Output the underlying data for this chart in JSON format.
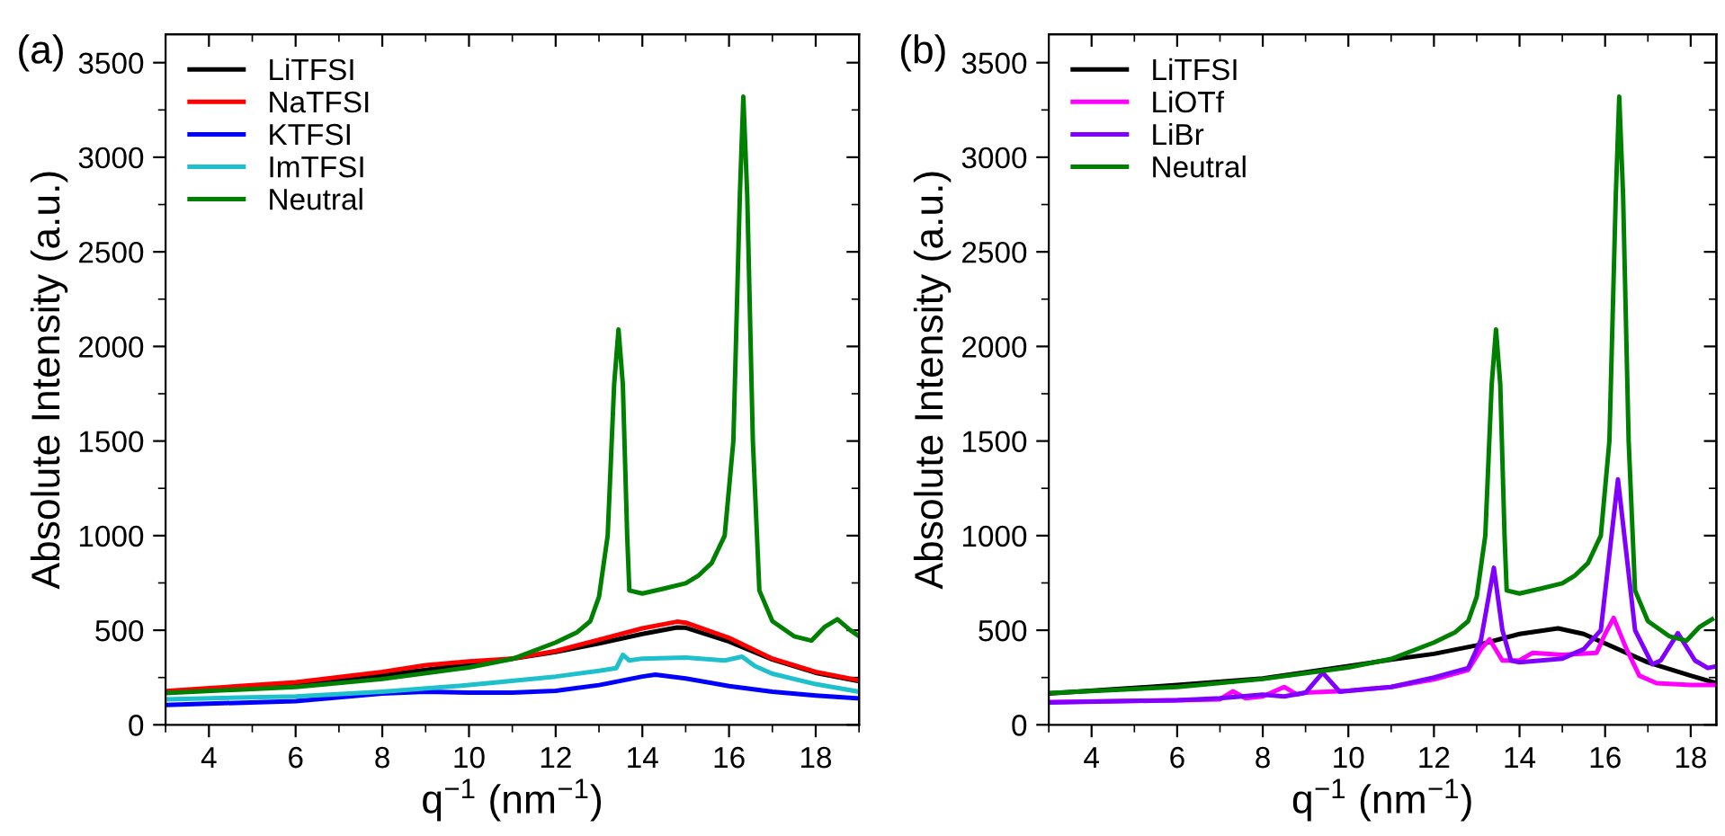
{
  "chart_data": [
    {
      "type": "line",
      "annotations": [
        "(a)"
      ],
      "xlabel": "q$^{−1}$ (nm$^{−1}$)",
      "ylabel": "Absolute Intensity (a.u.)",
      "xlim": [
        3,
        19
      ],
      "xticks": [
        4,
        6,
        8,
        10,
        12,
        14,
        16,
        18
      ],
      "ylim": [
        0,
        3650
      ],
      "yticks": [
        0,
        500,
        1000,
        1500,
        2000,
        2500,
        3000,
        3500
      ],
      "legend": "top left",
      "grid": false,
      "series": [
        {
          "name": "LiTFSI",
          "color": "#000000",
          "x": [
            3,
            6,
            8,
            9,
            10,
            11,
            12,
            13,
            14,
            14.8,
            15,
            16,
            17,
            18,
            19
          ],
          "values": [
            170,
            215,
            262,
            290,
            320,
            350,
            385,
            430,
            480,
            515,
            513,
            440,
            345,
            275,
            230
          ]
        },
        {
          "name": "NaTFSI",
          "color": "#ff0000",
          "x": [
            3,
            6,
            8,
            9,
            10,
            11,
            12,
            13,
            14,
            14.8,
            15,
            16,
            17,
            18,
            19
          ],
          "values": [
            178,
            225,
            280,
            315,
            335,
            350,
            390,
            450,
            510,
            545,
            540,
            460,
            350,
            280,
            235
          ]
        },
        {
          "name": "KTFSI",
          "color": "#0000ff",
          "x": [
            3,
            6,
            8,
            9,
            10,
            11,
            12,
            13,
            14,
            14.3,
            15,
            16,
            17,
            18,
            19
          ],
          "values": [
            105,
            125,
            165,
            175,
            170,
            170,
            180,
            210,
            255,
            265,
            245,
            205,
            175,
            155,
            140
          ]
        },
        {
          "name": "ImTFSI",
          "color": "#1ec0cc",
          "x": [
            3,
            6,
            8,
            10,
            12,
            13,
            13.4,
            13.55,
            13.7,
            14,
            15,
            15.9,
            16.3,
            16.6,
            17,
            18,
            19
          ],
          "values": [
            135,
            150,
            175,
            210,
            255,
            285,
            300,
            370,
            340,
            350,
            355,
            340,
            360,
            310,
            270,
            215,
            175
          ]
        },
        {
          "name": "Neutral",
          "color": "#008000",
          "x": [
            3,
            6,
            8,
            10,
            11,
            12,
            12.5,
            12.8,
            13,
            13.2,
            13.35,
            13.45,
            13.55,
            13.65,
            13.7,
            14,
            14.5,
            15,
            15.3,
            15.6,
            15.9,
            16.1,
            16.25,
            16.33,
            16.42,
            16.55,
            16.7,
            17,
            17.5,
            17.9,
            18.2,
            18.5,
            18.8,
            19
          ],
          "values": [
            168,
            200,
            242,
            303,
            348,
            435,
            490,
            548,
            677,
            1000,
            1800,
            2090,
            1800,
            1000,
            710,
            694,
            720,
            748,
            790,
            855,
            1000,
            1500,
            2800,
            3320,
            2800,
            1500,
            710,
            548,
            468,
            445,
            516,
            558,
            500,
            468
          ]
        }
      ]
    },
    {
      "type": "line",
      "annotations": [
        "(b)"
      ],
      "xlabel": "q$^{−1}$ (nm$^{−1}$)",
      "ylabel": "Absolute Intensity (a.u.)",
      "xlim": [
        3,
        18.6
      ],
      "xticks": [
        4,
        6,
        8,
        10,
        12,
        14,
        16,
        18
      ],
      "ylim": [
        0,
        3650
      ],
      "yticks": [
        0,
        500,
        1000,
        1500,
        2000,
        2500,
        3000,
        3500
      ],
      "legend": "top left",
      "grid": false,
      "series": [
        {
          "name": "LiTFSI",
          "color": "#000000",
          "x": [
            3,
            6,
            8,
            10,
            11,
            12,
            13,
            14,
            14.9,
            15.5,
            16,
            17,
            18,
            18.6
          ],
          "values": [
            165,
            210,
            245,
            310,
            345,
            375,
            420,
            480,
            510,
            480,
            430,
            330,
            260,
            220
          ]
        },
        {
          "name": "LiOTf",
          "color": "#ff00ff",
          "x": [
            3,
            6,
            7,
            7.3,
            7.6,
            8,
            8.5,
            8.8,
            9,
            10,
            11,
            12,
            12.8,
            13.1,
            13.3,
            13.6,
            14,
            14.3,
            15,
            15.8,
            16,
            16.2,
            16.5,
            16.8,
            17.2,
            18,
            18.6
          ],
          "values": [
            120,
            130,
            135,
            177,
            140,
            150,
            200,
            160,
            170,
            180,
            200,
            240,
            290,
            400,
            452,
            340,
            340,
            380,
            370,
            380,
            480,
            565,
            400,
            260,
            220,
            210,
            210
          ]
        },
        {
          "name": "LiBr",
          "color": "#8000ff",
          "x": [
            3,
            6,
            7,
            8,
            8.5,
            9,
            9.4,
            9.8,
            10,
            11,
            12,
            12.8,
            13.1,
            13.4,
            13.6,
            13.8,
            14,
            15,
            15.5,
            15.9,
            16.1,
            16.3,
            16.5,
            16.7,
            17.1,
            17.3,
            17.7,
            18.1,
            18.4,
            18.6
          ],
          "values": [
            118,
            130,
            140,
            160,
            150,
            170,
            275,
            175,
            180,
            200,
            250,
            300,
            450,
            830,
            500,
            340,
            330,
            350,
            400,
            500,
            900,
            1297,
            900,
            500,
            320,
            340,
            484,
            340,
            300,
            310
          ]
        },
        {
          "name": "Neutral",
          "color": "#008000",
          "x": [
            3,
            6,
            8,
            10,
            11,
            12,
            12.5,
            12.8,
            13,
            13.2,
            13.35,
            13.45,
            13.55,
            13.65,
            13.7,
            14,
            14.5,
            15,
            15.3,
            15.6,
            15.9,
            16.1,
            16.25,
            16.33,
            16.42,
            16.55,
            16.7,
            17,
            17.5,
            17.9,
            18.2,
            18.5
          ],
          "values": [
            168,
            200,
            242,
            303,
            348,
            435,
            490,
            548,
            677,
            1000,
            1800,
            2090,
            1800,
            1000,
            710,
            694,
            720,
            748,
            790,
            855,
            1000,
            1500,
            2800,
            3320,
            2800,
            1500,
            710,
            548,
            468,
            445,
            516,
            558
          ]
        }
      ]
    }
  ]
}
